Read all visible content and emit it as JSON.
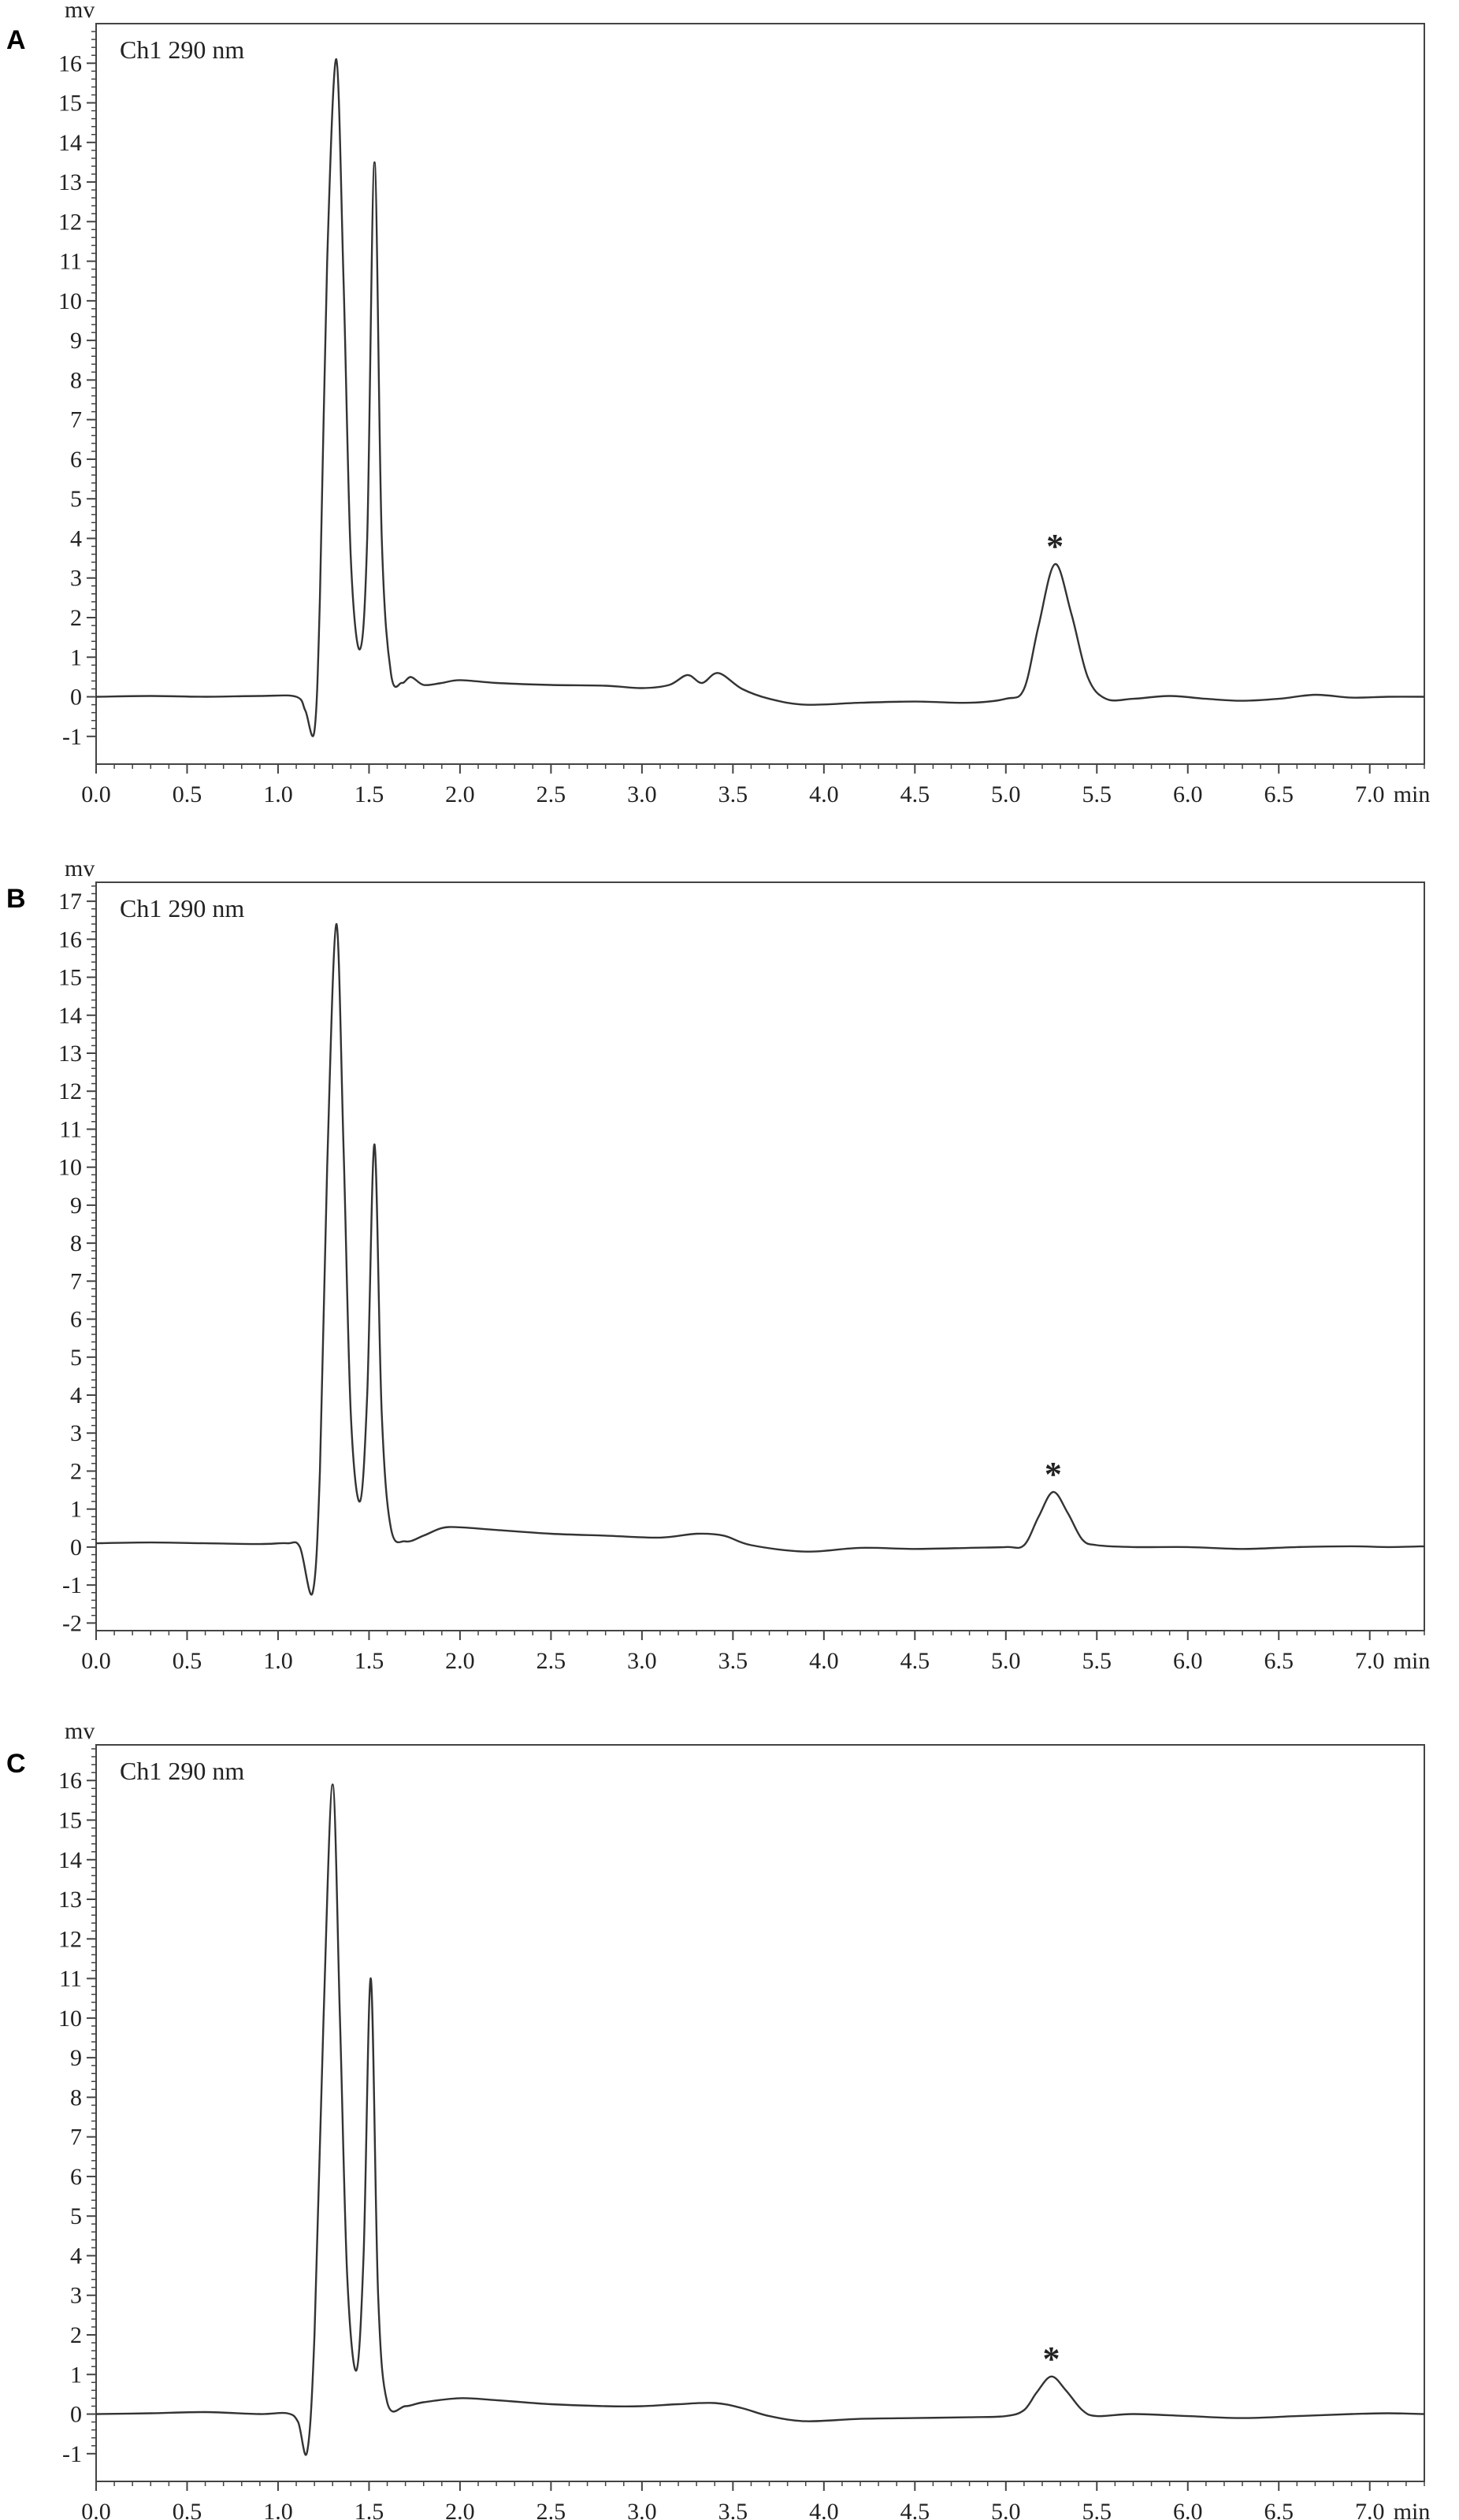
{
  "chart_data": [
    {
      "type": "line",
      "panel_label": "A",
      "channel_label": "Ch1 290 nm",
      "ylabel": "mv",
      "xlabel": "min",
      "xlim": [
        0.0,
        7.3
      ],
      "ylim": [
        -1.7,
        17.0
      ],
      "x_ticks": [
        "0.0",
        "0.5",
        "1.0",
        "1.5",
        "2.0",
        "2.5",
        "3.0",
        "3.5",
        "4.0",
        "4.5",
        "5.0",
        "5.5",
        "6.0",
        "6.5",
        "7.0"
      ],
      "y_ticks": [
        "-1",
        "0",
        "1",
        "2",
        "3",
        "4",
        "5",
        "6",
        "7",
        "8",
        "9",
        "10",
        "11",
        "12",
        "13",
        "14",
        "15",
        "16"
      ],
      "grid": false,
      "line_color": "#333333",
      "peak_marker": {
        "text": "*",
        "x": 5.27,
        "y": 3.35
      },
      "series": [
        {
          "x": [
            0.0,
            0.3,
            0.6,
            0.9,
            1.1,
            1.15,
            1.2,
            1.23,
            1.27,
            1.32,
            1.36,
            1.4,
            1.45,
            1.49,
            1.53,
            1.57,
            1.62,
            1.68,
            1.73,
            1.8,
            1.9,
            2.0,
            2.2,
            2.5,
            2.8,
            3.0,
            3.15,
            3.25,
            3.33,
            3.42,
            3.55,
            3.7,
            3.9,
            4.2,
            4.5,
            4.8,
            5.0,
            5.1,
            5.18,
            5.27,
            5.36,
            5.45,
            5.55,
            5.7,
            5.9,
            6.1,
            6.3,
            6.5,
            6.7,
            6.9,
            7.1,
            7.3
          ],
          "y": [
            0.0,
            0.02,
            0.0,
            0.02,
            0.0,
            -0.35,
            -0.85,
            2.5,
            11.0,
            16.1,
            10.5,
            3.5,
            1.2,
            4.0,
            13.5,
            4.0,
            0.6,
            0.35,
            0.5,
            0.3,
            0.35,
            0.42,
            0.35,
            0.3,
            0.28,
            0.22,
            0.3,
            0.55,
            0.35,
            0.6,
            0.2,
            -0.05,
            -0.2,
            -0.15,
            -0.12,
            -0.15,
            -0.05,
            0.2,
            1.8,
            3.35,
            2.1,
            0.5,
            -0.05,
            -0.05,
            0.02,
            -0.05,
            -0.1,
            -0.05,
            0.05,
            -0.02,
            0.0,
            0.0
          ]
        }
      ]
    },
    {
      "type": "line",
      "panel_label": "B",
      "channel_label": "Ch1 290 nm",
      "ylabel": "mv",
      "xlabel": "min",
      "xlim": [
        0.0,
        7.3
      ],
      "ylim": [
        -2.2,
        17.5
      ],
      "x_ticks": [
        "0.0",
        "0.5",
        "1.0",
        "1.5",
        "2.0",
        "2.5",
        "3.0",
        "3.5",
        "4.0",
        "4.5",
        "5.0",
        "5.5",
        "6.0",
        "6.5",
        "7.0"
      ],
      "y_ticks": [
        "-2",
        "-1",
        "0",
        "1",
        "2",
        "3",
        "4",
        "5",
        "6",
        "7",
        "8",
        "9",
        "10",
        "11",
        "12",
        "13",
        "14",
        "15",
        "16",
        "17"
      ],
      "grid": false,
      "line_color": "#333333",
      "peak_marker": {
        "text": "*",
        "x": 5.26,
        "y": 1.45
      },
      "series": [
        {
          "x": [
            0.0,
            0.3,
            0.6,
            0.9,
            1.05,
            1.12,
            1.19,
            1.23,
            1.27,
            1.32,
            1.36,
            1.4,
            1.45,
            1.49,
            1.53,
            1.57,
            1.62,
            1.7,
            1.8,
            1.9,
            2.0,
            2.2,
            2.5,
            2.8,
            3.1,
            3.3,
            3.45,
            3.6,
            3.9,
            4.2,
            4.5,
            4.8,
            5.0,
            5.1,
            5.18,
            5.26,
            5.34,
            5.42,
            5.5,
            5.7,
            6.0,
            6.3,
            6.6,
            6.9,
            7.1,
            7.3
          ],
          "y": [
            0.1,
            0.12,
            0.1,
            0.08,
            0.1,
            0.0,
            -1.2,
            2.0,
            10.0,
            16.4,
            10.5,
            3.5,
            1.2,
            4.0,
            10.6,
            3.5,
            0.5,
            0.15,
            0.3,
            0.5,
            0.52,
            0.45,
            0.35,
            0.3,
            0.25,
            0.35,
            0.3,
            0.05,
            -0.12,
            -0.02,
            -0.05,
            -0.02,
            0.0,
            0.05,
            0.8,
            1.45,
            0.9,
            0.2,
            0.05,
            0.0,
            0.0,
            -0.05,
            0.0,
            0.02,
            0.0,
            0.02
          ]
        }
      ]
    },
    {
      "type": "line",
      "panel_label": "C",
      "channel_label": "Ch1 290 nm",
      "ylabel": "mv",
      "xlabel": "min",
      "xlim": [
        0.0,
        7.3
      ],
      "ylim": [
        -1.7,
        16.9
      ],
      "x_ticks": [
        "0.0",
        "0.5",
        "1.0",
        "1.5",
        "2.0",
        "2.5",
        "3.0",
        "3.5",
        "4.0",
        "4.5",
        "5.0",
        "5.5",
        "6.0",
        "6.5",
        "7.0"
      ],
      "y_ticks": [
        "-1",
        "0",
        "1",
        "2",
        "3",
        "4",
        "5",
        "6",
        "7",
        "8",
        "9",
        "10",
        "11",
        "12",
        "13",
        "14",
        "15",
        "16"
      ],
      "grid": false,
      "line_color": "#333333",
      "peak_marker": {
        "text": "*",
        "x": 5.25,
        "y": 0.95
      },
      "series": [
        {
          "x": [
            0.0,
            0.3,
            0.6,
            0.9,
            1.05,
            1.11,
            1.16,
            1.2,
            1.25,
            1.3,
            1.34,
            1.38,
            1.43,
            1.47,
            1.51,
            1.55,
            1.6,
            1.7,
            1.8,
            2.0,
            2.2,
            2.5,
            2.8,
            3.0,
            3.2,
            3.4,
            3.55,
            3.7,
            3.9,
            4.2,
            4.5,
            4.8,
            5.0,
            5.1,
            5.17,
            5.25,
            5.33,
            5.42,
            5.5,
            5.7,
            6.0,
            6.3,
            6.6,
            6.9,
            7.1,
            7.3
          ],
          "y": [
            0.0,
            0.02,
            0.05,
            0.0,
            0.02,
            -0.2,
            -0.95,
            2.0,
            10.0,
            15.9,
            10.0,
            3.5,
            1.1,
            4.0,
            11.0,
            3.0,
            0.3,
            0.2,
            0.3,
            0.4,
            0.35,
            0.25,
            0.2,
            0.2,
            0.25,
            0.28,
            0.15,
            -0.05,
            -0.18,
            -0.12,
            -0.1,
            -0.08,
            -0.05,
            0.1,
            0.55,
            0.95,
            0.6,
            0.1,
            -0.05,
            0.0,
            -0.05,
            -0.1,
            -0.05,
            0.0,
            0.02,
            0.0
          ]
        }
      ]
    }
  ]
}
